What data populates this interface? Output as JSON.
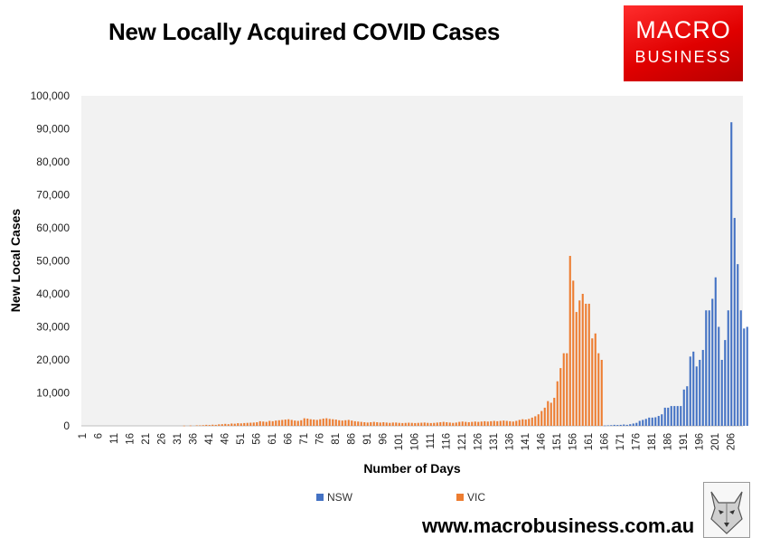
{
  "chart_data": {
    "type": "bar",
    "title": "New Locally Acquired COVID Cases",
    "xlabel": "Number of Days",
    "ylabel": "New Local Cases",
    "ylim": [
      0,
      100000
    ],
    "y_ticks": [
      "0",
      "10,000",
      "20,000",
      "30,000",
      "40,000",
      "50,000",
      "60,000",
      "70,000",
      "80,000",
      "90,000",
      "100,000"
    ],
    "x_tick_labels": [
      "1",
      "6",
      "11",
      "16",
      "21",
      "26",
      "31",
      "36",
      "41",
      "46",
      "51",
      "56",
      "61",
      "66",
      "71",
      "76",
      "81",
      "86",
      "91",
      "96",
      "101",
      "106",
      "111",
      "116",
      "121",
      "126",
      "131",
      "136",
      "141",
      "146",
      "151",
      "156",
      "161",
      "166",
      "171",
      "176",
      "181",
      "186",
      "191",
      "196",
      "201",
      "206"
    ],
    "x_range": [
      1,
      209
    ],
    "grid": false,
    "legend_position": "bottom",
    "series": [
      {
        "name": "NSW",
        "color": "#4472c4",
        "points": [
          [
            166,
            100
          ],
          [
            167,
            150
          ],
          [
            168,
            200
          ],
          [
            169,
            300
          ],
          [
            170,
            250
          ],
          [
            171,
            300
          ],
          [
            172,
            400
          ],
          [
            173,
            300
          ],
          [
            174,
            500
          ],
          [
            175,
            700
          ],
          [
            176,
            900
          ],
          [
            177,
            1500
          ],
          [
            178,
            1800
          ],
          [
            179,
            2100
          ],
          [
            180,
            2500
          ],
          [
            181,
            2500
          ],
          [
            182,
            2600
          ],
          [
            183,
            3000
          ],
          [
            184,
            3500
          ],
          [
            185,
            5500
          ],
          [
            186,
            5500
          ],
          [
            187,
            6000
          ],
          [
            188,
            6000
          ],
          [
            189,
            6000
          ],
          [
            190,
            6000
          ],
          [
            191,
            11000
          ],
          [
            192,
            12000
          ],
          [
            193,
            21000
          ],
          [
            194,
            22500
          ],
          [
            195,
            18000
          ],
          [
            196,
            20000
          ],
          [
            197,
            23000
          ],
          [
            198,
            35000
          ],
          [
            199,
            35000
          ],
          [
            200,
            38500
          ],
          [
            201,
            45000
          ],
          [
            202,
            30000
          ],
          [
            203,
            20000
          ],
          [
            204,
            26000
          ],
          [
            205,
            35000
          ],
          [
            206,
            92000
          ],
          [
            207,
            63000
          ],
          [
            208,
            49000
          ],
          [
            209,
            35000
          ],
          [
            210,
            29500
          ],
          [
            211,
            30000
          ]
        ]
      },
      {
        "name": "VIC",
        "color": "#ed7d31",
        "points": [
          [
            33,
            60
          ],
          [
            35,
            100
          ],
          [
            37,
            150
          ],
          [
            38,
            150
          ],
          [
            39,
            200
          ],
          [
            40,
            300
          ],
          [
            41,
            250
          ],
          [
            42,
            350
          ],
          [
            43,
            300
          ],
          [
            44,
            450
          ],
          [
            45,
            500
          ],
          [
            46,
            600
          ],
          [
            47,
            500
          ],
          [
            48,
            700
          ],
          [
            49,
            650
          ],
          [
            50,
            800
          ],
          [
            51,
            750
          ],
          [
            52,
            850
          ],
          [
            53,
            900
          ],
          [
            54,
            950
          ],
          [
            55,
            1000
          ],
          [
            56,
            1100
          ],
          [
            57,
            1400
          ],
          [
            58,
            1300
          ],
          [
            59,
            1200
          ],
          [
            60,
            1500
          ],
          [
            61,
            1400
          ],
          [
            62,
            1600
          ],
          [
            63,
            1700
          ],
          [
            64,
            1800
          ],
          [
            65,
            1900
          ],
          [
            66,
            2000
          ],
          [
            67,
            1800
          ],
          [
            68,
            1600
          ],
          [
            69,
            1500
          ],
          [
            70,
            1700
          ],
          [
            71,
            2300
          ],
          [
            72,
            2200
          ],
          [
            73,
            2000
          ],
          [
            74,
            1900
          ],
          [
            75,
            1800
          ],
          [
            76,
            2000
          ],
          [
            77,
            2200
          ],
          [
            78,
            2300
          ],
          [
            79,
            2100
          ],
          [
            80,
            2000
          ],
          [
            81,
            1900
          ],
          [
            82,
            1700
          ],
          [
            83,
            1600
          ],
          [
            84,
            1700
          ],
          [
            85,
            1800
          ],
          [
            86,
            1600
          ],
          [
            87,
            1400
          ],
          [
            88,
            1300
          ],
          [
            89,
            1200
          ],
          [
            90,
            1100
          ],
          [
            91,
            1000
          ],
          [
            92,
            1100
          ],
          [
            93,
            1200
          ],
          [
            94,
            1100
          ],
          [
            95,
            1000
          ],
          [
            96,
            1100
          ],
          [
            97,
            1000
          ],
          [
            98,
            900
          ],
          [
            99,
            1000
          ],
          [
            100,
            1000
          ],
          [
            101,
            900
          ],
          [
            102,
            850
          ],
          [
            103,
            900
          ],
          [
            104,
            950
          ],
          [
            105,
            900
          ],
          [
            106,
            850
          ],
          [
            107,
            900
          ],
          [
            108,
            950
          ],
          [
            109,
            1000
          ],
          [
            110,
            900
          ],
          [
            111,
            850
          ],
          [
            112,
            900
          ],
          [
            113,
            1000
          ],
          [
            114,
            1100
          ],
          [
            115,
            1200
          ],
          [
            116,
            1100
          ],
          [
            117,
            1000
          ],
          [
            118,
            900
          ],
          [
            119,
            1000
          ],
          [
            120,
            1200
          ],
          [
            121,
            1300
          ],
          [
            122,
            1200
          ],
          [
            123,
            1100
          ],
          [
            124,
            1200
          ],
          [
            125,
            1300
          ],
          [
            126,
            1200
          ],
          [
            127,
            1300
          ],
          [
            128,
            1400
          ],
          [
            129,
            1300
          ],
          [
            130,
            1400
          ],
          [
            131,
            1500
          ],
          [
            132,
            1400
          ],
          [
            133,
            1500
          ],
          [
            134,
            1600
          ],
          [
            135,
            1500
          ],
          [
            136,
            1400
          ],
          [
            137,
            1300
          ],
          [
            138,
            1500
          ],
          [
            139,
            1800
          ],
          [
            140,
            2000
          ],
          [
            141,
            1900
          ],
          [
            142,
            2100
          ],
          [
            143,
            2500
          ],
          [
            144,
            2900
          ],
          [
            145,
            3500
          ],
          [
            146,
            4500
          ],
          [
            147,
            5500
          ],
          [
            148,
            7500
          ],
          [
            149,
            7000
          ],
          [
            150,
            8500
          ],
          [
            151,
            13500
          ],
          [
            152,
            17500
          ],
          [
            153,
            22000
          ],
          [
            154,
            22000
          ],
          [
            155,
            51500
          ],
          [
            156,
            44000
          ],
          [
            157,
            34500
          ],
          [
            158,
            38000
          ],
          [
            159,
            40000
          ],
          [
            160,
            37000
          ],
          [
            161,
            37000
          ],
          [
            162,
            26500
          ],
          [
            163,
            28000
          ],
          [
            164,
            22000
          ],
          [
            165,
            20000
          ]
        ]
      }
    ]
  },
  "brand": {
    "line1": "MACRO",
    "line2": "BUSINESS"
  },
  "footer": {
    "url": "www.macrobusiness.com.au"
  },
  "colors": {
    "plot_background": "#f2f2f2",
    "nsw": "#4472c4",
    "vic": "#ed7d31",
    "brand_red": "#e00000"
  },
  "icons": {
    "wolf": "wolf-logo-icon"
  }
}
